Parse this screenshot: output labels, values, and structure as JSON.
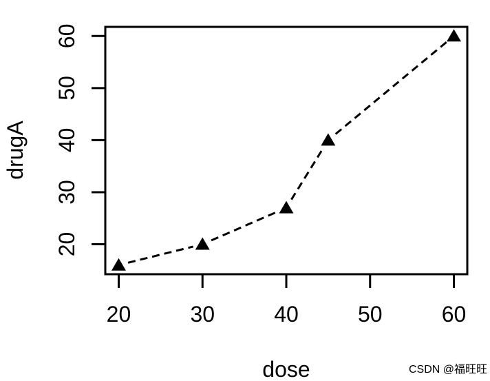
{
  "chart_data": {
    "type": "line",
    "title": "",
    "xlabel": "dose",
    "ylabel": "drugA",
    "x": [
      20,
      30,
      40,
      45,
      60
    ],
    "series": [
      {
        "name": "drugA",
        "values": [
          16,
          20,
          27,
          40,
          60
        ]
      }
    ],
    "x_ticks": [
      20,
      30,
      40,
      50,
      60
    ],
    "y_ticks": [
      20,
      30,
      40,
      50,
      60
    ],
    "xlim": [
      18.4,
      61.6
    ],
    "ylim": [
      14.24,
      61.76
    ],
    "grid": false,
    "legend_position": "none",
    "line_style": "dashed",
    "marker": "filled-triangle",
    "line_color": "#000000",
    "marker_color": "#000000",
    "frame": "full-box"
  },
  "watermark": {
    "text": "CSDN @福旺旺",
    "color": "#bfbfbf"
  }
}
